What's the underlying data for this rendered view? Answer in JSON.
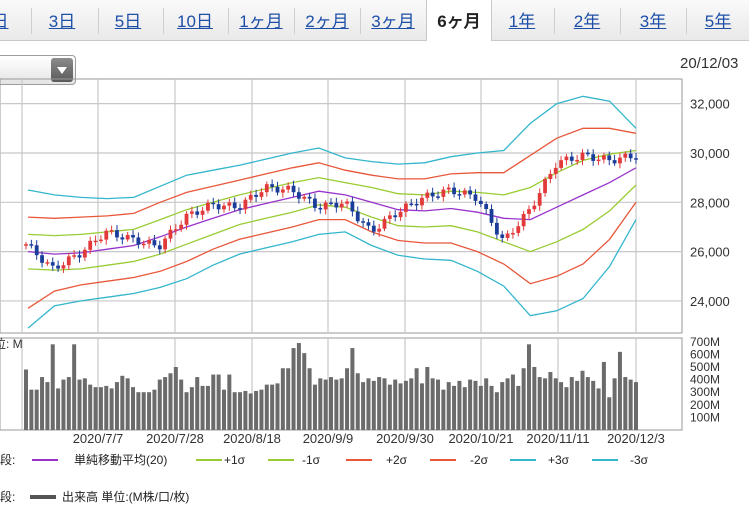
{
  "tabs": [
    {
      "label": "日",
      "active": false
    },
    {
      "label": "3日",
      "active": false
    },
    {
      "label": "5日",
      "active": false
    },
    {
      "label": "10日",
      "active": false
    },
    {
      "label": "1ヶ月",
      "active": false
    },
    {
      "label": "2ヶ月",
      "active": false
    },
    {
      "label": "3ヶ月",
      "active": false
    },
    {
      "label": "6ヶ月",
      "active": true
    },
    {
      "label": "1年",
      "active": false
    },
    {
      "label": "2年",
      "active": false
    },
    {
      "label": "3年",
      "active": false
    },
    {
      "label": "5年",
      "active": false
    }
  ],
  "last_date": "20/12/03",
  "legend_upper": {
    "prefix": "段:",
    "items": [
      {
        "label": "単純移動平均(20)",
        "color": "#9933cc"
      },
      {
        "label": "+1σ",
        "color": "#99cc33"
      },
      {
        "label": "-1σ",
        "color": "#99cc33"
      },
      {
        "label": "+2σ",
        "color": "#e8573a"
      },
      {
        "label": "-2σ",
        "color": "#e8573a"
      },
      {
        "label": "+3σ",
        "color": "#33b6cc"
      },
      {
        "label": "-3σ",
        "color": "#33b6cc"
      }
    ]
  },
  "legend_lower": {
    "prefix": "段:",
    "label": "出来高 単位:(M株/口/枚)",
    "color": "#555555"
  },
  "chart_data": [
    {
      "type": "line",
      "title": "",
      "x_tick_labels": [
        "2020/7/7",
        "2020/7/28",
        "2020/8/18",
        "2020/9/9",
        "2020/9/30",
        "2020/10/21",
        "2020/11/11",
        "2020/12/3"
      ],
      "y_ticks": [
        24000,
        26000,
        28000,
        30000,
        32000
      ],
      "ylim": [
        22700,
        33000
      ],
      "grid": true,
      "x": [
        "06/23",
        "06/30",
        "07/07",
        "07/14",
        "07/21",
        "07/28",
        "08/04",
        "08/11",
        "08/18",
        "08/25",
        "09/01",
        "09/09",
        "09/16",
        "09/23",
        "09/30",
        "10/07",
        "10/14",
        "10/21",
        "10/28",
        "11/04",
        "11/11",
        "11/18",
        "11/25",
        "12/03"
      ],
      "series": [
        {
          "name": "単純移動平均(20)",
          "values": [
            26000,
            25900,
            25950,
            26100,
            26250,
            26600,
            27000,
            27350,
            27700,
            27950,
            28200,
            28450,
            28300,
            28000,
            27700,
            27650,
            27750,
            27600,
            27350,
            27300,
            27800,
            28300,
            28800,
            29400
          ]
        },
        {
          "name": "+1σ",
          "values": [
            26700,
            26650,
            26700,
            26800,
            26900,
            27300,
            27700,
            28000,
            28300,
            28550,
            28800,
            29000,
            28800,
            28600,
            28350,
            28300,
            28450,
            28400,
            28300,
            28600,
            29200,
            29700,
            29950,
            30100
          ]
        },
        {
          "name": "-1σ",
          "values": [
            25300,
            25250,
            25300,
            25450,
            25600,
            25900,
            26300,
            26700,
            27100,
            27350,
            27600,
            27900,
            27800,
            27400,
            27050,
            27000,
            27050,
            26800,
            26400,
            26000,
            26400,
            26900,
            27650,
            28700
          ]
        },
        {
          "name": "+2σ",
          "values": [
            27400,
            27350,
            27400,
            27450,
            27550,
            28000,
            28400,
            28650,
            28900,
            29150,
            29400,
            29600,
            29300,
            29100,
            28950,
            28950,
            29150,
            29200,
            29200,
            29900,
            30600,
            31000,
            31000,
            30800
          ]
        },
        {
          "name": "-2σ",
          "values": [
            23700,
            24400,
            24650,
            24800,
            24950,
            25200,
            25600,
            26100,
            26500,
            26750,
            27000,
            27300,
            27300,
            26800,
            26450,
            26350,
            26350,
            26000,
            25500,
            24700,
            25000,
            25500,
            26500,
            28000
          ]
        },
        {
          "name": "+3σ",
          "values": [
            28500,
            28300,
            28200,
            28150,
            28200,
            28650,
            29100,
            29300,
            29500,
            29750,
            30000,
            30200,
            29800,
            29650,
            29550,
            29600,
            29850,
            30000,
            30100,
            31200,
            32000,
            32300,
            32100,
            31000
          ]
        },
        {
          "name": "-3σ",
          "values": [
            22900,
            23800,
            24000,
            24150,
            24300,
            24550,
            24900,
            25450,
            25900,
            26150,
            26400,
            26700,
            26800,
            26250,
            25850,
            25700,
            25650,
            25200,
            24600,
            23400,
            23600,
            24100,
            25400,
            27300
          ]
        },
        {
          "name": "close",
          "values": [
            26300,
            25300,
            25900,
            26800,
            26500,
            26200,
            27400,
            27900,
            27800,
            28600,
            28500,
            27800,
            28000,
            26800,
            27600,
            28200,
            28500,
            28200,
            26400,
            27700,
            29600,
            29900,
            29700,
            29900
          ]
        }
      ]
    },
    {
      "type": "bar",
      "title": "",
      "ylabel": "単位: M",
      "y_ticks": [
        100,
        200,
        300,
        400,
        500,
        600,
        700
      ],
      "y_tick_labels": [
        "100M",
        "200M",
        "300M",
        "400M",
        "500M",
        "600M",
        "700M"
      ],
      "ylim": [
        0,
        730
      ],
      "values": [
        480,
        320,
        320,
        420,
        380,
        680,
        330,
        400,
        420,
        680,
        400,
        410,
        360,
        340,
        340,
        350,
        330,
        380,
        430,
        410,
        340,
        300,
        300,
        300,
        320,
        400,
        420,
        450,
        500,
        400,
        300,
        340,
        420,
        350,
        350,
        440,
        440,
        320,
        440,
        300,
        300,
        310,
        290,
        310,
        320,
        360,
        360,
        370,
        490,
        490,
        650,
        690,
        610,
        490,
        360,
        410,
        400,
        420,
        400,
        410,
        490,
        650,
        450,
        380,
        410,
        390,
        420,
        410,
        360,
        400,
        370,
        390,
        410,
        490,
        370,
        500,
        410,
        400,
        320,
        380,
        350,
        390,
        340,
        400,
        390,
        350,
        410,
        350,
        300,
        380,
        410,
        440,
        350,
        490,
        680,
        500,
        420,
        410,
        460,
        410,
        380,
        340,
        420,
        390,
        470,
        420,
        390,
        330,
        540,
        260,
        410,
        620,
        420,
        400,
        380
      ]
    }
  ]
}
